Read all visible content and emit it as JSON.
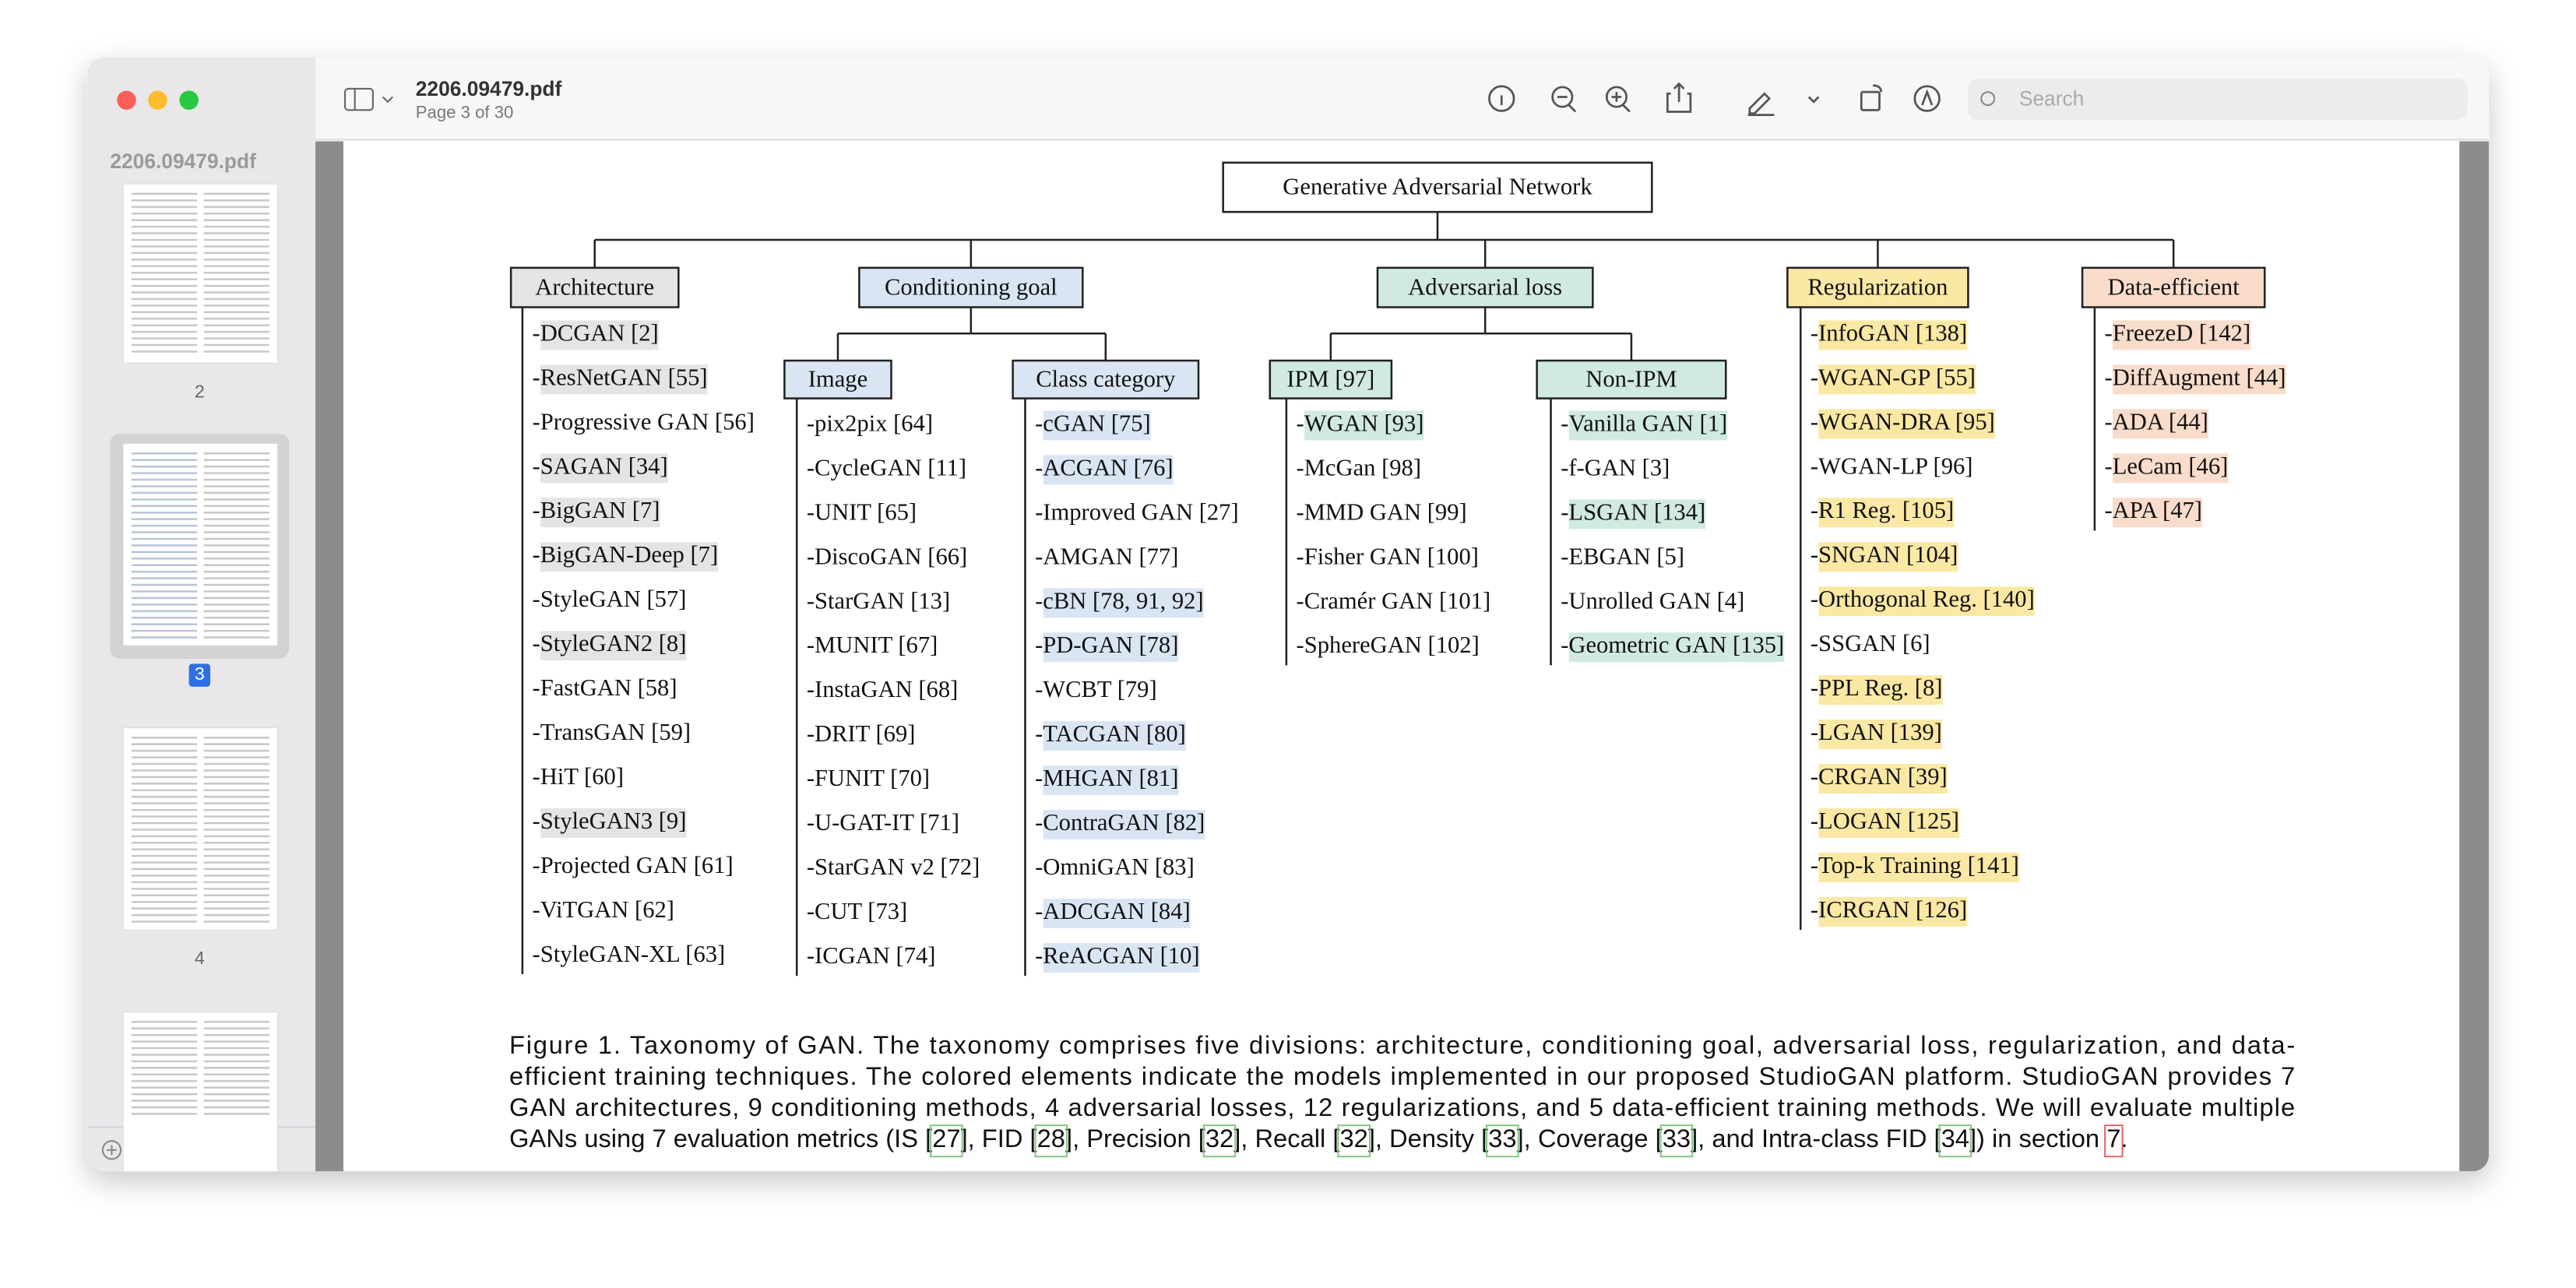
{
  "window": {
    "filename": "2206.09479.pdf",
    "page_info": "Page 3 of 30",
    "search_placeholder": "Search"
  },
  "sidebar": {
    "title": "2206.09479.pdf",
    "pages": [
      "2",
      "3",
      "4"
    ],
    "current": "3"
  },
  "taxonomy": {
    "root": "Generative Adversarial Network",
    "divisions": [
      {
        "name": "Architecture",
        "color": "#e4e4e4",
        "items": [
          {
            "text": "-DCGAN [2]",
            "highlight": true
          },
          {
            "text": "-ResNetGAN [55]",
            "highlight": true
          },
          {
            "text": "-Progressive GAN [56]",
            "highlight": false
          },
          {
            "text": "-SAGAN [34]",
            "highlight": true
          },
          {
            "text": "-BigGAN [7]",
            "highlight": true
          },
          {
            "text": "-BigGAN-Deep [7]",
            "highlight": true
          },
          {
            "text": "-StyleGAN [57]",
            "highlight": false
          },
          {
            "text": "-StyleGAN2 [8]",
            "highlight": true
          },
          {
            "text": "-FastGAN [58]",
            "highlight": false
          },
          {
            "text": "-TransGAN [59]",
            "highlight": false
          },
          {
            "text": "-HiT [60]",
            "highlight": false
          },
          {
            "text": "-StyleGAN3 [9]",
            "highlight": true
          },
          {
            "text": "-Projected GAN [61]",
            "highlight": false
          },
          {
            "text": "-ViTGAN [62]",
            "highlight": false
          },
          {
            "text": "-StyleGAN-XL [63]",
            "highlight": false
          }
        ]
      },
      {
        "name": "Conditioning goal",
        "color": "#dae5f4",
        "groups": [
          {
            "name": "Image",
            "items": [
              {
                "text": "-pix2pix [64]",
                "highlight": false
              },
              {
                "text": "-CycleGAN [11]",
                "highlight": false
              },
              {
                "text": "-UNIT [65]",
                "highlight": false
              },
              {
                "text": "-DiscoGAN [66]",
                "highlight": false
              },
              {
                "text": "-StarGAN [13]",
                "highlight": false
              },
              {
                "text": "-MUNIT [67]",
                "highlight": false
              },
              {
                "text": "-InstaGAN [68]",
                "highlight": false
              },
              {
                "text": "-DRIT [69]",
                "highlight": false
              },
              {
                "text": "-FUNIT [70]",
                "highlight": false
              },
              {
                "text": "-U-GAT-IT [71]",
                "highlight": false
              },
              {
                "text": "-StarGAN v2 [72]",
                "highlight": false
              },
              {
                "text": "-CUT [73]",
                "highlight": false
              },
              {
                "text": "-ICGAN [74]",
                "highlight": false
              }
            ]
          },
          {
            "name": "Class category",
            "items": [
              {
                "text": "-cGAN [75]",
                "highlight": true
              },
              {
                "text": "-ACGAN [76]",
                "highlight": true
              },
              {
                "text": "-Improved GAN [27]",
                "highlight": false
              },
              {
                "text": "-AMGAN [77]",
                "highlight": false
              },
              {
                "text": "-cBN [78, 91, 92]",
                "highlight": true
              },
              {
                "text": "-PD-GAN [78]",
                "highlight": true
              },
              {
                "text": "-WCBT [79]",
                "highlight": false
              },
              {
                "text": "-TACGAN [80]",
                "highlight": true
              },
              {
                "text": "-MHGAN [81]",
                "highlight": true
              },
              {
                "text": "-ContraGAN [82]",
                "highlight": true
              },
              {
                "text": "-OmniGAN [83]",
                "highlight": false
              },
              {
                "text": "-ADCGAN [84]",
                "highlight": true
              },
              {
                "text": "-ReACGAN [10]",
                "highlight": true
              }
            ]
          }
        ]
      },
      {
        "name": "Adversarial loss",
        "color": "#d1eadf",
        "groups": [
          {
            "name": "IPM [97]",
            "items": [
              {
                "text": "-WGAN [93]",
                "highlight": true
              },
              {
                "text": "-McGan [98]",
                "highlight": false
              },
              {
                "text": "-MMD GAN [99]",
                "highlight": false
              },
              {
                "text": "-Fisher GAN [100]",
                "highlight": false
              },
              {
                "text": "-Cramér GAN [101]",
                "highlight": false
              },
              {
                "text": "-SphereGAN [102]",
                "highlight": false
              }
            ]
          },
          {
            "name": "Non-IPM",
            "items": [
              {
                "text": "-Vanilla GAN [1]",
                "highlight": true
              },
              {
                "text": "-f-GAN [3]",
                "highlight": false
              },
              {
                "text": "-LSGAN [134]",
                "highlight": true
              },
              {
                "text": "-EBGAN [5]",
                "highlight": false
              },
              {
                "text": "-Unrolled GAN [4]",
                "highlight": false
              },
              {
                "text": "-Geometric GAN [135]",
                "highlight": true
              }
            ]
          }
        ]
      },
      {
        "name": "Regularization",
        "color": "#fbe8a4",
        "items": [
          {
            "text": "-InfoGAN [138]",
            "highlight": true
          },
          {
            "text": "-WGAN-GP [55]",
            "highlight": true
          },
          {
            "text": "-WGAN-DRA [95]",
            "highlight": true
          },
          {
            "text": "-WGAN-LP [96]",
            "highlight": false
          },
          {
            "text": "-R1 Reg. [105]",
            "highlight": true
          },
          {
            "text": "-SNGAN [104]",
            "highlight": true
          },
          {
            "text": "-Orthogonal Reg. [140]",
            "highlight": true
          },
          {
            "text": "-SSGAN [6]",
            "highlight": false
          },
          {
            "text": "-PPL Reg. [8]",
            "highlight": true
          },
          {
            "text": "-LGAN [139]",
            "highlight": true
          },
          {
            "text": "-CRGAN [39]",
            "highlight": true
          },
          {
            "text": "-LOGAN [125]",
            "highlight": true
          },
          {
            "text": "-Top-k Training [141]",
            "highlight": true
          },
          {
            "text": "-ICRGAN [126]",
            "highlight": true
          }
        ]
      },
      {
        "name": "Data-efficient",
        "color": "#fadccb",
        "items": [
          {
            "text": "-FreezeD [142]",
            "highlight": true
          },
          {
            "text": "-DiffAugment [44]",
            "highlight": true
          },
          {
            "text": "-ADA [44]",
            "highlight": true
          },
          {
            "text": "-LeCam [46]",
            "highlight": true
          },
          {
            "text": "-APA [47]",
            "highlight": true
          }
        ]
      }
    ]
  },
  "caption": {
    "lines": [
      [
        {
          "text": "Figure 1. Taxonomy of GAN. The taxonomy comprises five divisions: architecture, conditioning goal, adversarial loss, regularization, and data-"
        }
      ],
      [
        {
          "text": "efficient training techniques. The colored elements indicate the models implemented in our proposed StudioGAN platform. StudioGAN provides 7"
        }
      ],
      [
        {
          "text": "GAN architectures, 9 conditioning methods, 4 adversarial losses, 12 regularizations, and 5 data-efficient training methods. We will evaluate multiple"
        }
      ],
      [
        {
          "text": "GANs using 7 evaluation metrics (IS ["
        },
        {
          "text": "27",
          "link": "#7cc47c"
        },
        {
          "text": "], FID ["
        },
        {
          "text": "28",
          "link": "#7cc47c"
        },
        {
          "text": "], Precision ["
        },
        {
          "text": "32",
          "link": "#7cc47c"
        },
        {
          "text": "], Recall ["
        },
        {
          "text": "32",
          "link": "#7cc47c"
        },
        {
          "text": "], Density ["
        },
        {
          "text": "33",
          "link": "#7cc47c"
        },
        {
          "text": "], Coverage ["
        },
        {
          "text": "33",
          "link": "#7cc47c"
        },
        {
          "text": "], and Intra-class FID ["
        },
        {
          "text": "34",
          "link": "#7cc47c"
        },
        {
          "text": "]) in section "
        },
        {
          "text": "7",
          "link": "#e06060"
        },
        {
          "text": "."
        }
      ]
    ]
  }
}
